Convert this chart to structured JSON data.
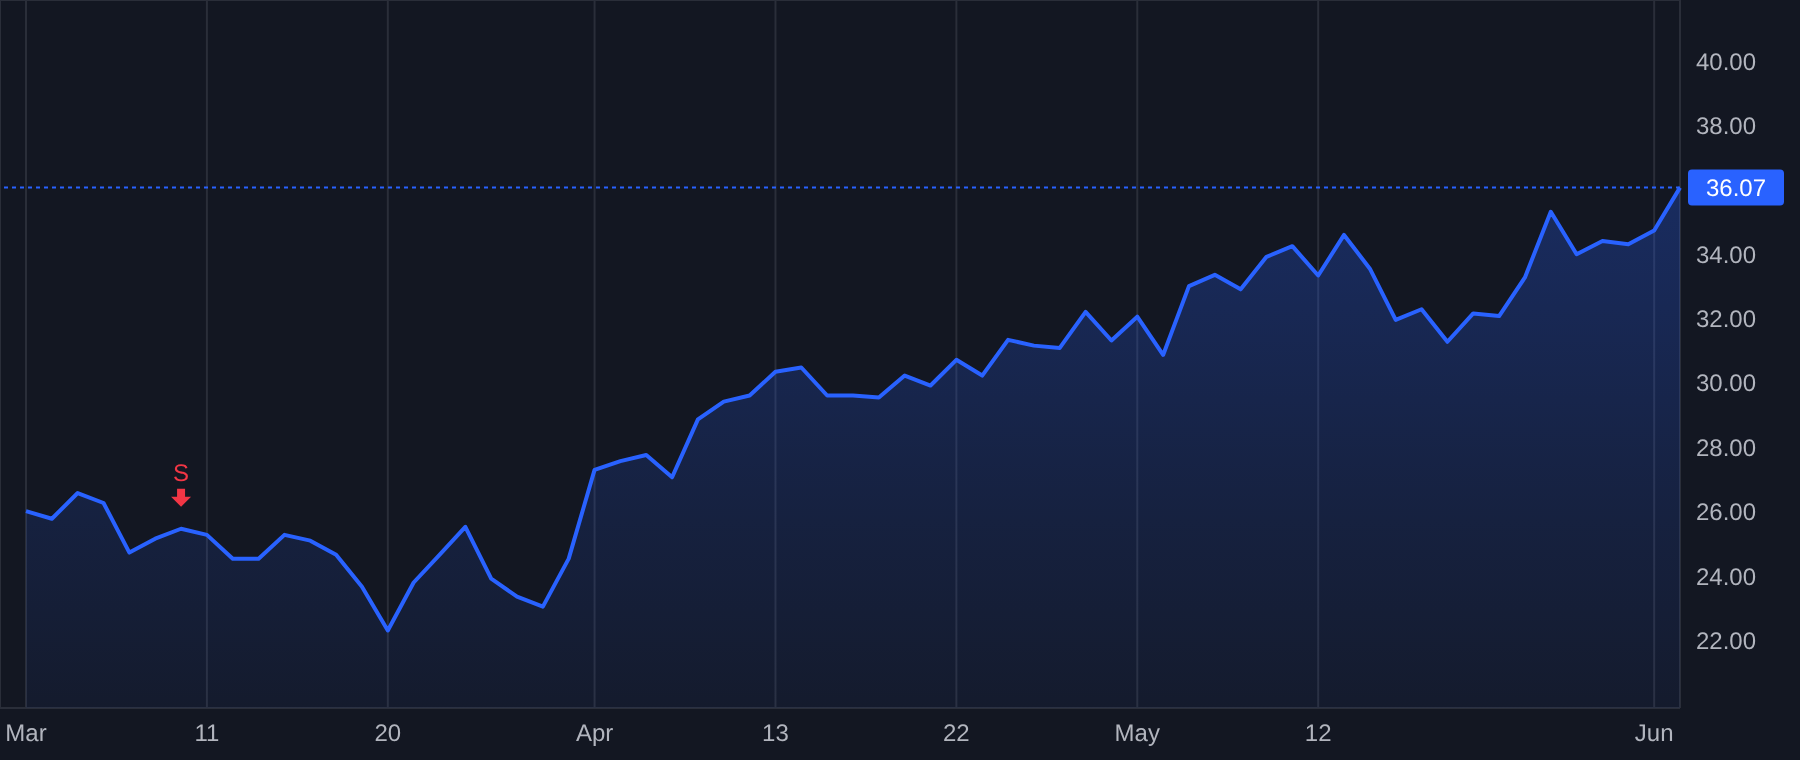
{
  "chart_data": {
    "type": "area",
    "categories": [
      "Mar",
      null,
      null,
      null,
      null,
      null,
      null,
      "11",
      null,
      null,
      null,
      null,
      null,
      null,
      "20",
      null,
      null,
      null,
      null,
      null,
      null,
      null,
      "Apr",
      null,
      null,
      null,
      null,
      null,
      null,
      "13",
      null,
      null,
      null,
      null,
      null,
      null,
      "22",
      null,
      null,
      null,
      null,
      null,
      null,
      "May",
      null,
      null,
      null,
      null,
      null,
      null,
      "12",
      null,
      null,
      null,
      null,
      null,
      null,
      null,
      null,
      null,
      null,
      null,
      null,
      "Jun",
      null
    ],
    "series": [
      {
        "color": "#2962ff",
        "values": [
          26.02,
          25.78,
          26.58,
          26.27,
          24.73,
          25.16,
          25.47,
          25.28,
          24.54,
          24.54,
          25.28,
          25.1,
          24.66,
          23.67,
          22.31,
          23.8,
          24.66,
          25.53,
          23.92,
          23.36,
          23.05,
          24.54,
          27.3,
          27.57,
          27.76,
          27.07,
          28.87,
          29.42,
          29.61,
          30.35,
          30.48,
          29.61,
          29.61,
          29.55,
          30.23,
          29.92,
          30.72,
          30.23,
          31.34,
          31.16,
          31.09,
          32.21,
          31.32,
          32.06,
          30.87,
          33.01,
          33.36,
          32.91,
          33.92,
          34.25,
          33.34,
          34.6,
          33.55,
          31.96,
          32.29,
          31.28,
          32.16,
          32.08,
          33.28,
          35.32,
          34.0,
          34.41,
          34.31,
          34.74,
          36.07
        ]
      }
    ],
    "ylim": [
      19.9,
      41.9
    ],
    "yticks": [
      {
        "value": 22,
        "label": "22.00"
      },
      {
        "value": 24,
        "label": "24.00"
      },
      {
        "value": 26,
        "label": "26.00"
      },
      {
        "value": 28,
        "label": "28.00"
      },
      {
        "value": 30,
        "label": "30.00"
      },
      {
        "value": 32,
        "label": "32.00"
      },
      {
        "value": 34,
        "label": "34.00"
      },
      {
        "value": 38,
        "label": "38.00"
      },
      {
        "value": 40,
        "label": "40.00"
      }
    ],
    "ref_lines": [
      {
        "axis": "y",
        "value": 36.07,
        "label": "36.07",
        "color": "#2962ff",
        "line_style": "dotted"
      }
    ],
    "annotations": [
      {
        "text": "S",
        "y": 25.47
      }
    ],
    "grid": true,
    "legend": false,
    "marker": "none",
    "line_style": "solid"
  }
}
